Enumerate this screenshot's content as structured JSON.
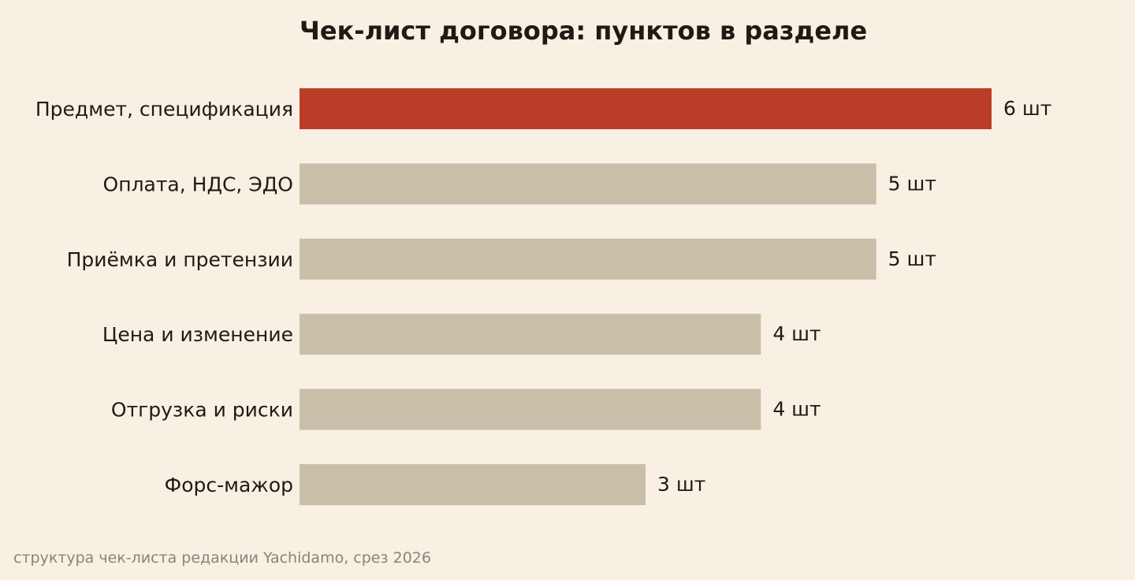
{
  "chart_data": {
    "type": "bar",
    "orientation": "horizontal",
    "title": "Чек-лист договора: пунктов в разделе",
    "categories": [
      "Предмет, спецификация",
      "Оплата, НДС, ЭДО",
      "Приёмка и претензии",
      "Цена и изменение",
      "Отгрузка и риски",
      "Форс-мажор"
    ],
    "values": [
      6,
      5,
      5,
      4,
      4,
      3
    ],
    "value_labels": [
      "6 шт",
      "5 шт",
      "5 шт",
      "4 шт",
      "4 шт",
      "3 шт"
    ],
    "xlim": [
      0,
      6
    ],
    "grid": false,
    "legend": "none",
    "colors": {
      "highlight": "#bb3d27",
      "bar": "#c9bfa8",
      "background": "#f7f0e3",
      "text": "#1f1a14",
      "note": "#8a8478"
    },
    "highlight_index": 0
  },
  "footer": {
    "source": "структура чек-листа редакции Yachidamo, срез 2026"
  }
}
